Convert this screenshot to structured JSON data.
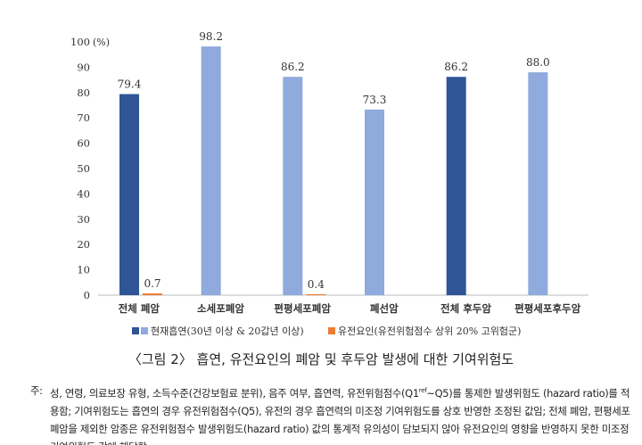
{
  "chart_data": {
    "type": "bar",
    "categories": [
      "전체 폐암",
      "소세포폐암",
      "편평세포폐암",
      "폐선암",
      "전체 후두암",
      "편평세포후두암"
    ],
    "series": [
      {
        "name": "현재흡연(30년 이상 & 20갑년 이상)",
        "values": [
          79.4,
          98.2,
          86.2,
          73.3,
          86.2,
          88.0
        ],
        "labels": [
          "79.4",
          "98.2",
          "86.2",
          "73.3",
          "86.2",
          "88.0"
        ],
        "colors": [
          "#2F5597",
          "#8FAADC",
          "#8FAADC",
          "#8FAADC",
          "#2F5597",
          "#8FAADC"
        ]
      },
      {
        "name": "유전요인(유전위험점수 상위 20% 고위험군)",
        "values": [
          0.7,
          null,
          0.4,
          null,
          null,
          null
        ],
        "labels": [
          "0.7",
          "",
          "0.4",
          "",
          "",
          ""
        ],
        "color": "#ED7D31"
      }
    ],
    "ylabel": "(%)",
    "ylim": [
      0,
      100
    ],
    "yticks": [
      "0",
      "10",
      "20",
      "30",
      "40",
      "50",
      "60",
      "70",
      "80",
      "90",
      "100"
    ],
    "grid": false,
    "legend": "bottom",
    "legend_colors": {
      "dark": "#2F5597",
      "light": "#8FAADC",
      "orange": "#ED7D31"
    }
  },
  "caption": "〈그림 2〉 흡연, 유전요인의 폐암 및 후두암 발생에 대한 기여위험도",
  "note": {
    "label": "주:",
    "text_a": "성, 연령, 의료보장 유형, 소득수준(건강보험료 분위), 음주 여부, 흡연력, 유전위험점수(Q1",
    "sup": "ref",
    "text_b": "~Q5)를 통제한 발생위험도 (hazard ratio)를 적용함; 기여위험도는 흡연의 경우 유전위험점수(Q5), 유전의 경우 흡연력의 미조정 기여위험도를 상호 반영한 조정된 값임; 전체 폐암, 편평세포폐암을 제외한 암종은 유전위험점수 발생위험도(hazard ratio) 값의 통계적 유의성이 담보되지 않아 유전요인의 영향을 반영하지 못한 미조정 기여위험도 값에 해당함"
  }
}
